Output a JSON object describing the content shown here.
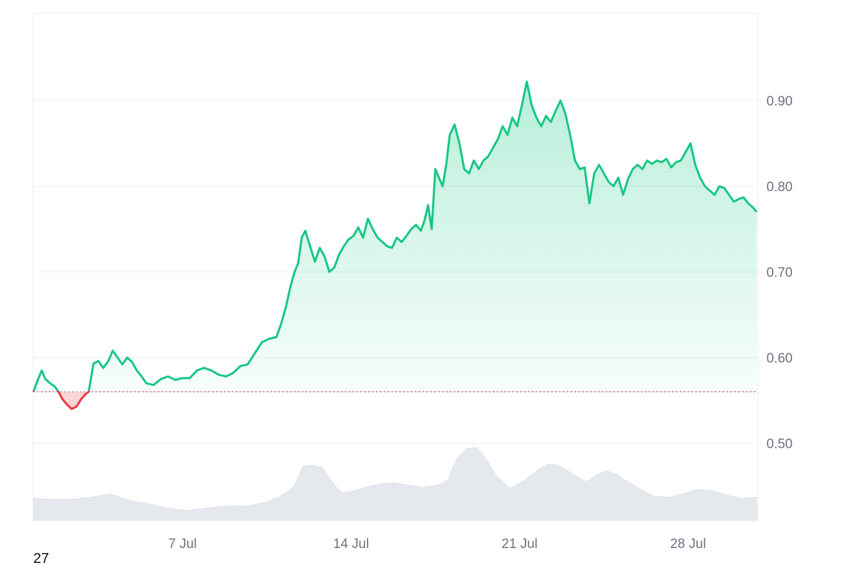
{
  "corner_label": "27",
  "chart_data": {
    "type": "area",
    "title": "",
    "xlabel": "",
    "ylabel": "",
    "baseline": 0.56,
    "ylim": [
      0.45,
      1.0
    ],
    "y_ticks": [
      "0.50",
      "0.60",
      "0.70",
      "0.80",
      "0.90"
    ],
    "y_tick_values": [
      0.5,
      0.6,
      0.7,
      0.8,
      0.9
    ],
    "x_ticks": [
      "7 Jul",
      "14 Jul",
      "21 Jul",
      "28 Jul"
    ],
    "x_tick_days": [
      7,
      14,
      21,
      28
    ],
    "xlim_days": [
      0.8,
      30.9
    ],
    "grid": true,
    "colors": {
      "up": "#16c784",
      "down": "#ea3943",
      "volume": "#e5e9ee",
      "grid": "#e9ecef"
    },
    "price": {
      "days": [
        0.8,
        1.0,
        1.15,
        1.3,
        1.5,
        1.7,
        1.85,
        2.0,
        2.2,
        2.4,
        2.6,
        2.8,
        3.0,
        3.1,
        3.3,
        3.5,
        3.7,
        3.9,
        4.1,
        4.3,
        4.5,
        4.7,
        4.9,
        5.1,
        5.3,
        5.5,
        5.8,
        6.1,
        6.4,
        6.7,
        7.0,
        7.3,
        7.6,
        7.9,
        8.2,
        8.5,
        8.8,
        9.1,
        9.4,
        9.7,
        10.0,
        10.3,
        10.6,
        10.9,
        11.1,
        11.3,
        11.5,
        11.65,
        11.8,
        11.95,
        12.1,
        12.3,
        12.5,
        12.7,
        12.9,
        13.1,
        13.3,
        13.5,
        13.7,
        13.9,
        14.1,
        14.3,
        14.5,
        14.7,
        14.9,
        15.1,
        15.3,
        15.5,
        15.7,
        15.9,
        16.1,
        16.3,
        16.5,
        16.7,
        16.9,
        17.05,
        17.2,
        17.35,
        17.5,
        17.65,
        17.8,
        17.95,
        18.1,
        18.3,
        18.5,
        18.7,
        18.9,
        19.1,
        19.3,
        19.5,
        19.7,
        19.9,
        20.1,
        20.3,
        20.5,
        20.7,
        20.9,
        21.1,
        21.3,
        21.5,
        21.7,
        21.9,
        22.1,
        22.3,
        22.5,
        22.7,
        22.9,
        23.1,
        23.3,
        23.5,
        23.7,
        23.9,
        24.1,
        24.3,
        24.5,
        24.7,
        24.9,
        25.1,
        25.3,
        25.5,
        25.7,
        25.9,
        26.1,
        26.3,
        26.5,
        26.7,
        26.9,
        27.1,
        27.3,
        27.5,
        27.7,
        27.9,
        28.1,
        28.3,
        28.5,
        28.7,
        28.9,
        29.1,
        29.3,
        29.5,
        29.7,
        29.9,
        30.1,
        30.3,
        30.5,
        30.7,
        30.85
      ],
      "values": [
        0.56,
        0.575,
        0.585,
        0.575,
        0.57,
        0.566,
        0.56,
        0.552,
        0.545,
        0.54,
        0.543,
        0.552,
        0.558,
        0.56,
        0.593,
        0.596,
        0.588,
        0.595,
        0.608,
        0.6,
        0.592,
        0.6,
        0.595,
        0.585,
        0.578,
        0.57,
        0.568,
        0.575,
        0.578,
        0.574,
        0.576,
        0.576,
        0.585,
        0.588,
        0.585,
        0.58,
        0.578,
        0.582,
        0.59,
        0.592,
        0.605,
        0.618,
        0.622,
        0.624,
        0.64,
        0.66,
        0.685,
        0.7,
        0.71,
        0.74,
        0.748,
        0.73,
        0.712,
        0.728,
        0.718,
        0.7,
        0.705,
        0.72,
        0.73,
        0.738,
        0.742,
        0.752,
        0.74,
        0.762,
        0.75,
        0.74,
        0.735,
        0.73,
        0.728,
        0.74,
        0.735,
        0.742,
        0.75,
        0.755,
        0.748,
        0.76,
        0.778,
        0.75,
        0.82,
        0.81,
        0.8,
        0.825,
        0.86,
        0.872,
        0.85,
        0.82,
        0.815,
        0.83,
        0.82,
        0.83,
        0.835,
        0.845,
        0.855,
        0.87,
        0.86,
        0.88,
        0.87,
        0.895,
        0.922,
        0.895,
        0.88,
        0.87,
        0.882,
        0.875,
        0.888,
        0.9,
        0.885,
        0.86,
        0.83,
        0.82,
        0.822,
        0.78,
        0.815,
        0.825,
        0.815,
        0.805,
        0.8,
        0.81,
        0.79,
        0.808,
        0.82,
        0.825,
        0.82,
        0.83,
        0.826,
        0.83,
        0.828,
        0.832,
        0.822,
        0.828,
        0.83,
        0.84,
        0.85,
        0.825,
        0.81,
        0.8,
        0.795,
        0.79,
        0.8,
        0.798,
        0.79,
        0.782,
        0.785,
        0.787,
        0.78,
        0.775,
        0.77
      ]
    },
    "volume": {
      "days": [
        0.8,
        1.6,
        2.4,
        3.2,
        4.0,
        4.8,
        5.6,
        6.4,
        7.2,
        8.0,
        8.8,
        9.6,
        10.4,
        11.0,
        11.6,
        12.0,
        12.4,
        12.8,
        13.2,
        13.6,
        14.0,
        14.6,
        15.2,
        15.8,
        16.4,
        17.0,
        17.6,
        18.0,
        18.4,
        18.8,
        19.2,
        19.6,
        20.0,
        20.6,
        21.2,
        21.8,
        22.2,
        22.6,
        23.0,
        23.4,
        23.8,
        24.2,
        24.6,
        25.0,
        25.4,
        25.8,
        26.2,
        26.6,
        27.2,
        27.8,
        28.4,
        29.0,
        29.6,
        30.2,
        30.85
      ],
      "values": [
        0.4,
        0.38,
        0.38,
        0.42,
        0.48,
        0.36,
        0.3,
        0.22,
        0.18,
        0.22,
        0.26,
        0.26,
        0.32,
        0.42,
        0.6,
        0.98,
        1.0,
        0.96,
        0.7,
        0.5,
        0.52,
        0.6,
        0.66,
        0.68,
        0.64,
        0.6,
        0.64,
        0.72,
        1.12,
        1.3,
        1.32,
        1.12,
        0.82,
        0.58,
        0.72,
        0.92,
        1.02,
        1.0,
        0.9,
        0.78,
        0.7,
        0.82,
        0.9,
        0.84,
        0.72,
        0.62,
        0.52,
        0.44,
        0.42,
        0.48,
        0.56,
        0.54,
        0.46,
        0.4,
        0.42
      ]
    }
  }
}
